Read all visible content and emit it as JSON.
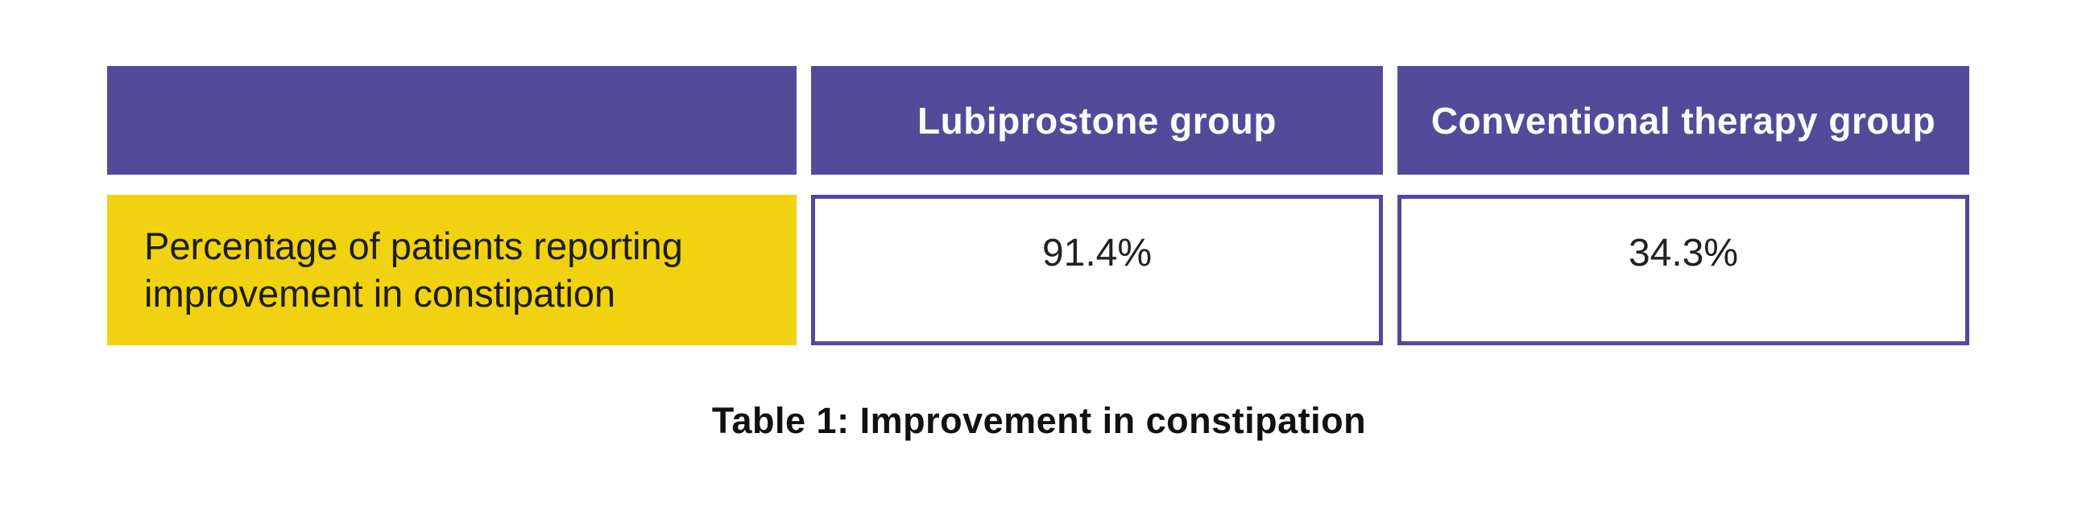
{
  "chart_data": {
    "type": "table",
    "title": "Table 1: Improvement in constipation",
    "columns": [
      "",
      "Lubiprostone group",
      "Conventional therapy group"
    ],
    "rows": [
      {
        "label": "Percentage of patients reporting improvement in constipation",
        "values": [
          "91.4%",
          "34.3%"
        ]
      }
    ]
  },
  "caption": "Table 1: Improvement in constipation",
  "colors": {
    "header_background": "#544A9A",
    "cell_border": "#54489B",
    "label_background": "#F1D211",
    "header_text": "#FDFDFD",
    "body_text": "#1D1D1B",
    "page_background": "#FFFFFF"
  }
}
